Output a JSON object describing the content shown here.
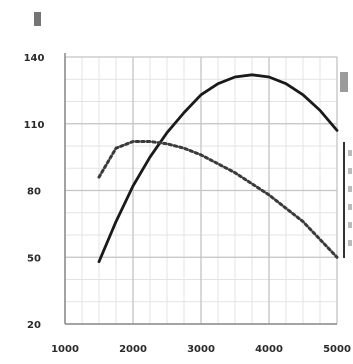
{
  "chart_data": {
    "type": "line",
    "title": "",
    "xlabel": "",
    "ylabel": "",
    "xlim": [
      1000,
      5000
    ],
    "ylim": [
      20,
      140
    ],
    "x_ticks": [
      1000,
      2000,
      3000,
      4000,
      5000
    ],
    "x_tick_labels": [
      "1000",
      "2000",
      "3000",
      "4000",
      "5000"
    ],
    "y_ticks": [
      20,
      50,
      80,
      110,
      140
    ],
    "y_tick_labels": [
      "20",
      "50",
      "80",
      "110",
      "140"
    ],
    "grid": true,
    "series": [
      {
        "style": "solid",
        "color": "#1a1a1a",
        "x": [
          1500,
          1750,
          2000,
          2250,
          2500,
          2750,
          3000,
          3250,
          3500,
          3750,
          4000,
          4250,
          4500,
          4750,
          5000
        ],
        "y": [
          48,
          66,
          82,
          95,
          106,
          115,
          123,
          128,
          131,
          132,
          131,
          128,
          123,
          116,
          107
        ]
      },
      {
        "style": "dashed",
        "color": "#3a3a3a",
        "x": [
          1500,
          1750,
          2000,
          2250,
          2500,
          2750,
          3000,
          3250,
          3500,
          3750,
          4000,
          4250,
          4500,
          4750,
          5000
        ],
        "y": [
          86,
          99,
          102,
          102,
          101,
          99,
          96,
          92,
          88,
          83,
          78,
          72,
          66,
          58,
          50
        ]
      }
    ]
  }
}
